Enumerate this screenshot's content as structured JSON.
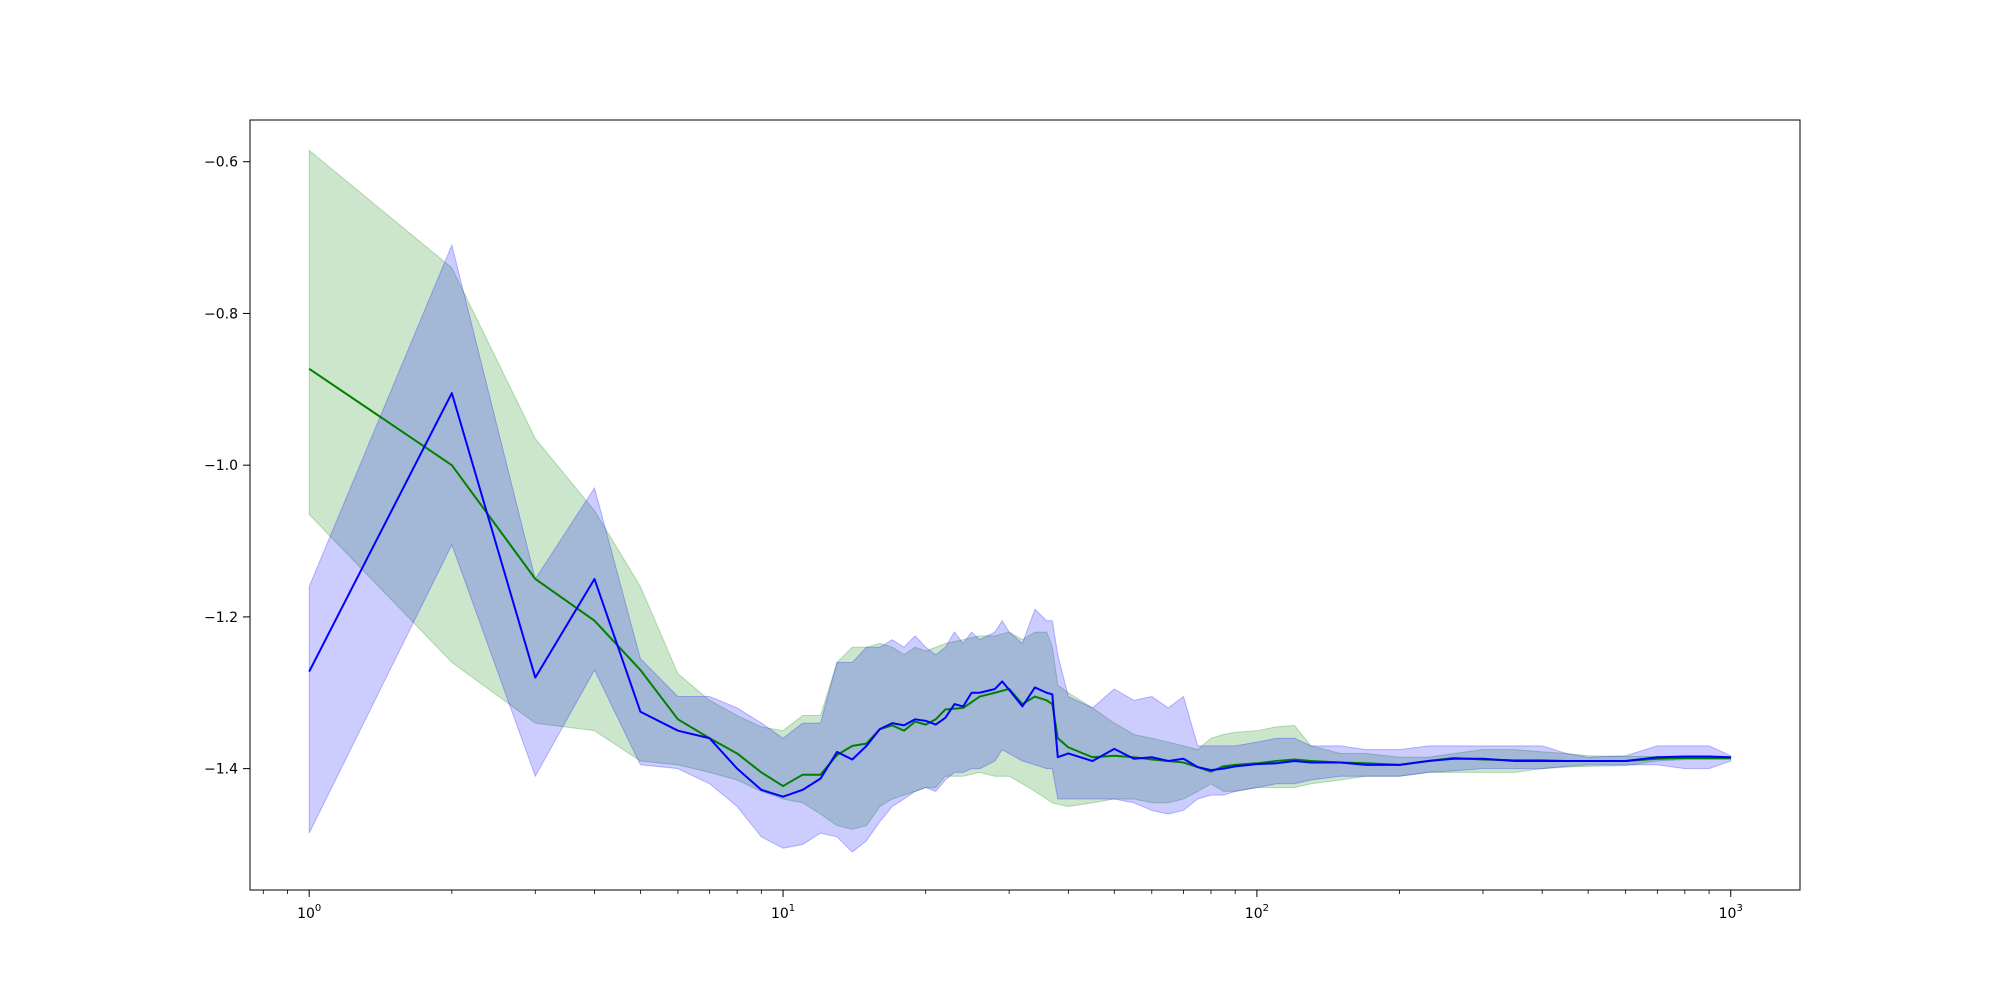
{
  "chart_data": {
    "type": "line",
    "title": "",
    "xlabel": "",
    "ylabel": "",
    "x_scale": "log",
    "xlim": [
      0.75,
      1400
    ],
    "ylim": [
      -1.56,
      -0.545
    ],
    "grid": false,
    "legend": "none",
    "x_ticks": [
      {
        "value": 1,
        "base": "10",
        "exp": "0"
      },
      {
        "value": 10,
        "base": "10",
        "exp": "1"
      },
      {
        "value": 100,
        "base": "10",
        "exp": "2"
      },
      {
        "value": 1000,
        "base": "10",
        "exp": "3"
      }
    ],
    "y_ticks": [
      {
        "value": -0.6,
        "label": "−0.6"
      },
      {
        "value": -0.8,
        "label": "−0.8"
      },
      {
        "value": -1.0,
        "label": "−1.0"
      },
      {
        "value": -1.2,
        "label": "−1.2"
      },
      {
        "value": -1.4,
        "label": "−1.4"
      }
    ],
    "series": [
      {
        "color": "#008000",
        "band_color": "#008000",
        "band_opacity": 0.2,
        "x": [
          1,
          2,
          3,
          4,
          5,
          6,
          7,
          8,
          9,
          10,
          11,
          12,
          13,
          14,
          15,
          16,
          17,
          18,
          19,
          20,
          21,
          22,
          24,
          26,
          28,
          30,
          32,
          34,
          36,
          37,
          38,
          40,
          45,
          50,
          55,
          60,
          65,
          70,
          75,
          80,
          85,
          90,
          100,
          110,
          120,
          130,
          150,
          170,
          200,
          230,
          260,
          300,
          350,
          400,
          450,
          500,
          600,
          700,
          800,
          900,
          1000
        ],
        "y": [
          -0.873,
          -1.0,
          -1.15,
          -1.205,
          -1.27,
          -1.335,
          -1.36,
          -1.38,
          -1.405,
          -1.423,
          -1.408,
          -1.408,
          -1.382,
          -1.37,
          -1.367,
          -1.348,
          -1.343,
          -1.35,
          -1.338,
          -1.342,
          -1.335,
          -1.322,
          -1.32,
          -1.305,
          -1.3,
          -1.295,
          -1.315,
          -1.305,
          -1.31,
          -1.315,
          -1.36,
          -1.372,
          -1.385,
          -1.383,
          -1.385,
          -1.388,
          -1.39,
          -1.392,
          -1.398,
          -1.404,
          -1.397,
          -1.395,
          -1.393,
          -1.39,
          -1.388,
          -1.39,
          -1.392,
          -1.393,
          -1.395,
          -1.39,
          -1.386,
          -1.388,
          -1.389,
          -1.389,
          -1.39,
          -1.39,
          -1.39,
          -1.387,
          -1.386,
          -1.386,
          -1.386
        ],
        "upper": [
          -0.585,
          -0.74,
          -0.965,
          -1.06,
          -1.16,
          -1.275,
          -1.31,
          -1.33,
          -1.345,
          -1.35,
          -1.33,
          -1.33,
          -1.26,
          -1.24,
          -1.24,
          -1.235,
          -1.24,
          -1.25,
          -1.24,
          -1.245,
          -1.24,
          -1.235,
          -1.23,
          -1.225,
          -1.225,
          -1.22,
          -1.23,
          -1.22,
          -1.22,
          -1.24,
          -1.29,
          -1.3,
          -1.32,
          -1.34,
          -1.355,
          -1.36,
          -1.365,
          -1.37,
          -1.375,
          -1.36,
          -1.355,
          -1.352,
          -1.35,
          -1.345,
          -1.343,
          -1.37,
          -1.38,
          -1.38,
          -1.385,
          -1.385,
          -1.38,
          -1.375,
          -1.375,
          -1.378,
          -1.38,
          -1.383,
          -1.384,
          -1.384,
          -1.384,
          -1.384,
          -1.384
        ],
        "lower": [
          -1.065,
          -1.26,
          -1.34,
          -1.35,
          -1.39,
          -1.395,
          -1.405,
          -1.415,
          -1.43,
          -1.44,
          -1.445,
          -1.46,
          -1.475,
          -1.48,
          -1.475,
          -1.45,
          -1.44,
          -1.435,
          -1.43,
          -1.425,
          -1.425,
          -1.41,
          -1.41,
          -1.405,
          -1.41,
          -1.41,
          -1.42,
          -1.43,
          -1.44,
          -1.445,
          -1.447,
          -1.45,
          -1.445,
          -1.44,
          -1.44,
          -1.445,
          -1.445,
          -1.44,
          -1.43,
          -1.42,
          -1.43,
          -1.43,
          -1.425,
          -1.425,
          -1.425,
          -1.42,
          -1.415,
          -1.41,
          -1.41,
          -1.405,
          -1.405,
          -1.405,
          -1.405,
          -1.4,
          -1.398,
          -1.397,
          -1.396,
          -1.39,
          -1.388,
          -1.388,
          -1.388
        ]
      },
      {
        "color": "#0000ff",
        "band_color": "#0000ff",
        "band_opacity": 0.2,
        "x": [
          1,
          2,
          3,
          4,
          5,
          6,
          7,
          8,
          9,
          10,
          11,
          12,
          13,
          14,
          15,
          16,
          17,
          18,
          19,
          20,
          21,
          22,
          23,
          24,
          25,
          26,
          28,
          29,
          30,
          32,
          34,
          36,
          37,
          38,
          40,
          45,
          50,
          55,
          60,
          65,
          70,
          75,
          80,
          85,
          90,
          100,
          110,
          120,
          130,
          150,
          170,
          200,
          230,
          260,
          300,
          350,
          400,
          450,
          500,
          600,
          700,
          800,
          900,
          1000
        ],
        "y": [
          -1.272,
          -0.905,
          -1.28,
          -1.15,
          -1.325,
          -1.35,
          -1.36,
          -1.4,
          -1.428,
          -1.437,
          -1.428,
          -1.413,
          -1.378,
          -1.388,
          -1.37,
          -1.348,
          -1.34,
          -1.343,
          -1.335,
          -1.337,
          -1.342,
          -1.333,
          -1.315,
          -1.318,
          -1.3,
          -1.3,
          -1.295,
          -1.285,
          -1.296,
          -1.318,
          -1.293,
          -1.3,
          -1.302,
          -1.385,
          -1.38,
          -1.39,
          -1.374,
          -1.387,
          -1.385,
          -1.39,
          -1.387,
          -1.398,
          -1.402,
          -1.4,
          -1.397,
          -1.394,
          -1.393,
          -1.39,
          -1.392,
          -1.392,
          -1.395,
          -1.395,
          -1.39,
          -1.387,
          -1.387,
          -1.39,
          -1.39,
          -1.39,
          -1.39,
          -1.39,
          -1.385,
          -1.384,
          -1.384,
          -1.385
        ],
        "upper": [
          -1.16,
          -0.71,
          -1.15,
          -1.03,
          -1.255,
          -1.305,
          -1.305,
          -1.32,
          -1.34,
          -1.36,
          -1.34,
          -1.34,
          -1.26,
          -1.26,
          -1.24,
          -1.24,
          -1.23,
          -1.24,
          -1.225,
          -1.24,
          -1.25,
          -1.24,
          -1.22,
          -1.235,
          -1.22,
          -1.23,
          -1.22,
          -1.205,
          -1.22,
          -1.235,
          -1.19,
          -1.205,
          -1.205,
          -1.25,
          -1.305,
          -1.32,
          -1.295,
          -1.31,
          -1.305,
          -1.32,
          -1.305,
          -1.37,
          -1.37,
          -1.37,
          -1.37,
          -1.365,
          -1.36,
          -1.36,
          -1.37,
          -1.37,
          -1.375,
          -1.375,
          -1.37,
          -1.37,
          -1.37,
          -1.37,
          -1.37,
          -1.38,
          -1.385,
          -1.383,
          -1.37,
          -1.37,
          -1.37,
          -1.383
        ],
        "lower": [
          -1.485,
          -1.105,
          -1.41,
          -1.27,
          -1.395,
          -1.4,
          -1.42,
          -1.45,
          -1.49,
          -1.505,
          -1.5,
          -1.485,
          -1.49,
          -1.51,
          -1.495,
          -1.47,
          -1.45,
          -1.44,
          -1.43,
          -1.425,
          -1.43,
          -1.415,
          -1.405,
          -1.405,
          -1.4,
          -1.4,
          -1.39,
          -1.375,
          -1.38,
          -1.39,
          -1.395,
          -1.4,
          -1.4,
          -1.44,
          -1.44,
          -1.44,
          -1.44,
          -1.445,
          -1.455,
          -1.46,
          -1.455,
          -1.44,
          -1.435,
          -1.435,
          -1.43,
          -1.425,
          -1.42,
          -1.42,
          -1.415,
          -1.41,
          -1.41,
          -1.41,
          -1.405,
          -1.403,
          -1.4,
          -1.4,
          -1.4,
          -1.397,
          -1.395,
          -1.395,
          -1.395,
          -1.4,
          -1.4,
          -1.39
        ]
      }
    ]
  }
}
